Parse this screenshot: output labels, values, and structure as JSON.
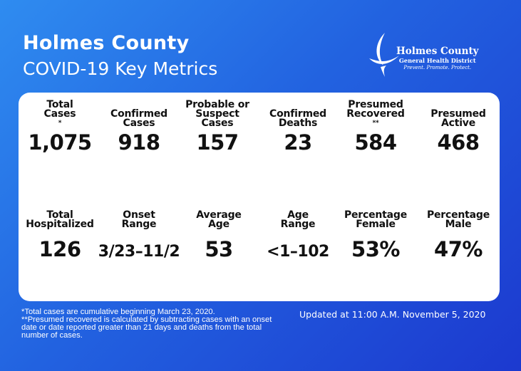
{
  "header": {
    "title": "Holmes County",
    "subtitle": "COVID-19 Key Metrics"
  },
  "logo": {
    "icon": "leaf-swirl-icon",
    "line1": "Holmes County",
    "line2": "General Health District",
    "line3": "Prevent. Promote. Protect."
  },
  "metrics": [
    {
      "label": [
        "Total",
        "Cases"
      ],
      "mark": "*",
      "value": "1,075"
    },
    {
      "label": [
        "Confirmed",
        "Cases"
      ],
      "mark": "",
      "value": "918"
    },
    {
      "label": [
        "Probable or",
        "Suspect",
        "Cases"
      ],
      "mark": "",
      "value": "157"
    },
    {
      "label": [
        "Confirmed",
        "Deaths"
      ],
      "mark": "",
      "value": "23"
    },
    {
      "label": [
        "Presumed",
        "Recovered"
      ],
      "mark": "**",
      "value": "584"
    },
    {
      "label": [
        "Presumed",
        "Active"
      ],
      "mark": "",
      "value": "468"
    },
    {
      "label": [
        "Total",
        "Hospitalized"
      ],
      "mark": "",
      "value": "126"
    },
    {
      "label": [
        "Onset",
        "Range"
      ],
      "mark": "",
      "value": "3/23–11/2"
    },
    {
      "label": [
        "Average",
        "Age"
      ],
      "mark": "",
      "value": "53"
    },
    {
      "label": [
        "Age",
        "Range"
      ],
      "mark": "",
      "value": "<1–102"
    },
    {
      "label": [
        "Percentage",
        "Female"
      ],
      "mark": "",
      "value": "53%"
    },
    {
      "label": [
        "Percentage",
        "Male"
      ],
      "mark": "",
      "value": "47%"
    }
  ],
  "footnotes": {
    "line1": "*Total cases are cumulative beginning March 23, 2020.",
    "line2": "**Presumed recovered is calculated by subtracting cases with an onset date or date reported greater than 21 days and deaths from the total number of cases."
  },
  "updated": "Updated at 11:00 A.M. November 5, 2020",
  "colors": {
    "background_start": "#2f8cf0",
    "background_end": "#1c39cf",
    "card": "#ffffff",
    "text_dark": "#111111"
  }
}
